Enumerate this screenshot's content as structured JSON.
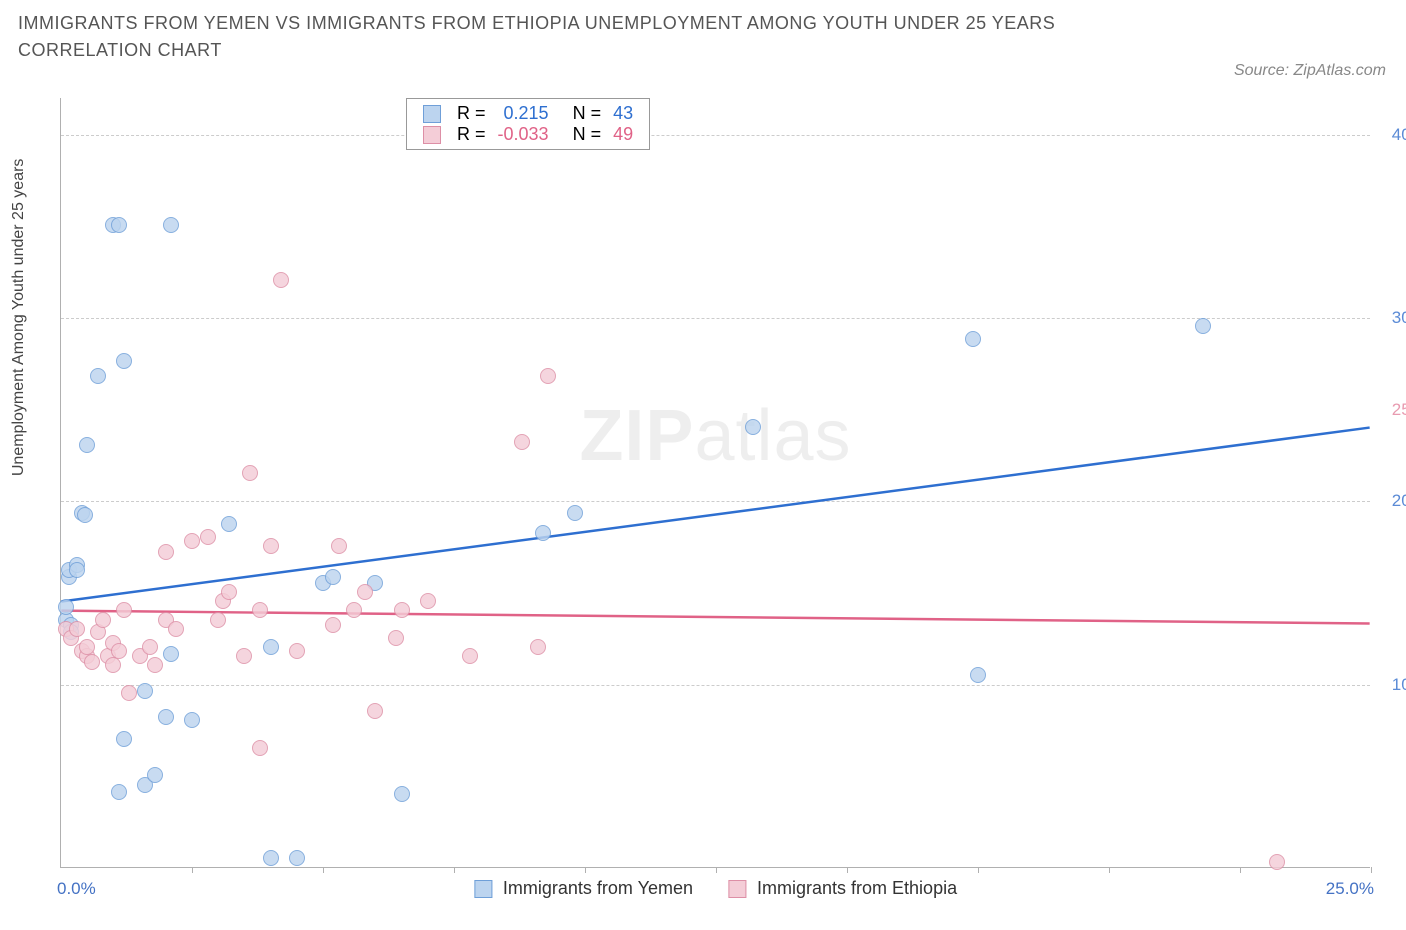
{
  "title": "IMMIGRANTS FROM YEMEN VS IMMIGRANTS FROM ETHIOPIA UNEMPLOYMENT AMONG YOUTH UNDER 25 YEARS CORRELATION CHART",
  "source": "Source: ZipAtlas.com",
  "watermark_bold": "ZIP",
  "watermark_rest": "atlas",
  "chart": {
    "type": "scatter",
    "y_axis_title": "Unemployment Among Youth under 25 years",
    "xlim": [
      0,
      25
    ],
    "ylim": [
      0,
      42
    ],
    "x_start_label": "0.0%",
    "x_end_label": "25.0%",
    "x_label_color": "#4472c4",
    "x_tick_positions": [
      2.5,
      5,
      7.5,
      10,
      12.5,
      15,
      17.5,
      20,
      22.5,
      25
    ],
    "y_ticks": [
      {
        "v": 10,
        "label": "10.0%",
        "color": "#5b8bd6"
      },
      {
        "v": 20,
        "label": "20.0%",
        "color": "#5b8bd6"
      },
      {
        "v": 25,
        "label": "25.0%",
        "color": "#e89bb0"
      },
      {
        "v": 30,
        "label": "30.0%",
        "color": "#5b8bd6"
      },
      {
        "v": 40,
        "label": "40.0%",
        "color": "#5b8bd6"
      }
    ],
    "grid_y": [
      10,
      20,
      30,
      40
    ],
    "grid_color": "#cccccc",
    "background_color": "#ffffff",
    "marker_radius": 8,
    "series": [
      {
        "key": "yemen",
        "label": "Immigrants from Yemen",
        "fill": "#bcd4ef",
        "stroke": "#6f9fd8",
        "trend_color": "#2e6fd0",
        "trend_width": 2.5,
        "R_label": "R =",
        "R_value": "0.215",
        "N_label": "N =",
        "N_value": "43",
        "stat_color": "#2e6fd0",
        "trend": {
          "x1": 0,
          "y1": 14.5,
          "x2": 25,
          "y2": 24
        },
        "points": [
          [
            0.1,
            13.5
          ],
          [
            0.1,
            14.2
          ],
          [
            0.15,
            15.8
          ],
          [
            0.15,
            16.2
          ],
          [
            0.2,
            13.2
          ],
          [
            0.2,
            12.8
          ],
          [
            0.3,
            16.5
          ],
          [
            0.3,
            16.2
          ],
          [
            0.4,
            19.3
          ],
          [
            0.45,
            19.2
          ],
          [
            0.5,
            23.0
          ],
          [
            0.7,
            26.8
          ],
          [
            1.2,
            27.6
          ],
          [
            1.0,
            35.0
          ],
          [
            1.1,
            35.0
          ],
          [
            1.1,
            4.1
          ],
          [
            1.6,
            4.5
          ],
          [
            1.6,
            9.6
          ],
          [
            1.2,
            7.0
          ],
          [
            1.8,
            5.0
          ],
          [
            2.0,
            8.2
          ],
          [
            2.1,
            35.0
          ],
          [
            2.1,
            11.6
          ],
          [
            2.5,
            8.0
          ],
          [
            3.2,
            18.7
          ],
          [
            4.0,
            0.5
          ],
          [
            4.0,
            12.0
          ],
          [
            4.5,
            0.5
          ],
          [
            5.0,
            15.5
          ],
          [
            5.2,
            15.8
          ],
          [
            6.0,
            15.5
          ],
          [
            6.5,
            4.0
          ],
          [
            9.2,
            18.2
          ],
          [
            9.8,
            19.3
          ],
          [
            13.2,
            24.0
          ],
          [
            17.4,
            28.8
          ],
          [
            17.5,
            10.5
          ],
          [
            21.8,
            29.5
          ]
        ]
      },
      {
        "key": "ethiopia",
        "label": "Immigrants from Ethiopia",
        "fill": "#f4cdd7",
        "stroke": "#dd8fa6",
        "trend_color": "#e06287",
        "trend_width": 2.5,
        "R_label": "R =",
        "R_value": "-0.033",
        "N_label": "N =",
        "N_value": "49",
        "stat_color": "#e06287",
        "trend": {
          "x1": 0,
          "y1": 14.0,
          "x2": 25,
          "y2": 13.3
        },
        "points": [
          [
            0.1,
            13.0
          ],
          [
            0.2,
            12.5
          ],
          [
            0.3,
            13.0
          ],
          [
            0.4,
            11.8
          ],
          [
            0.5,
            11.5
          ],
          [
            0.5,
            12.0
          ],
          [
            0.6,
            11.2
          ],
          [
            0.7,
            12.8
          ],
          [
            0.8,
            13.5
          ],
          [
            0.9,
            11.5
          ],
          [
            1.0,
            11.0
          ],
          [
            1.0,
            12.2
          ],
          [
            1.1,
            11.8
          ],
          [
            1.2,
            14.0
          ],
          [
            1.3,
            9.5
          ],
          [
            1.5,
            11.5
          ],
          [
            1.7,
            12.0
          ],
          [
            1.8,
            11.0
          ],
          [
            2.0,
            13.5
          ],
          [
            2.0,
            17.2
          ],
          [
            2.2,
            13.0
          ],
          [
            2.5,
            17.8
          ],
          [
            2.8,
            18.0
          ],
          [
            3.0,
            13.5
          ],
          [
            3.1,
            14.5
          ],
          [
            3.2,
            15.0
          ],
          [
            3.5,
            11.5
          ],
          [
            3.6,
            21.5
          ],
          [
            3.8,
            6.5
          ],
          [
            3.8,
            14.0
          ],
          [
            4.0,
            17.5
          ],
          [
            4.2,
            32.0
          ],
          [
            4.5,
            11.8
          ],
          [
            5.2,
            13.2
          ],
          [
            5.3,
            17.5
          ],
          [
            5.6,
            14.0
          ],
          [
            5.8,
            15.0
          ],
          [
            6.0,
            8.5
          ],
          [
            6.4,
            12.5
          ],
          [
            6.5,
            14.0
          ],
          [
            7.0,
            14.5
          ],
          [
            7.8,
            11.5
          ],
          [
            8.8,
            23.2
          ],
          [
            9.1,
            12.0
          ],
          [
            9.3,
            26.8
          ],
          [
            23.2,
            0.3
          ]
        ]
      }
    ]
  }
}
